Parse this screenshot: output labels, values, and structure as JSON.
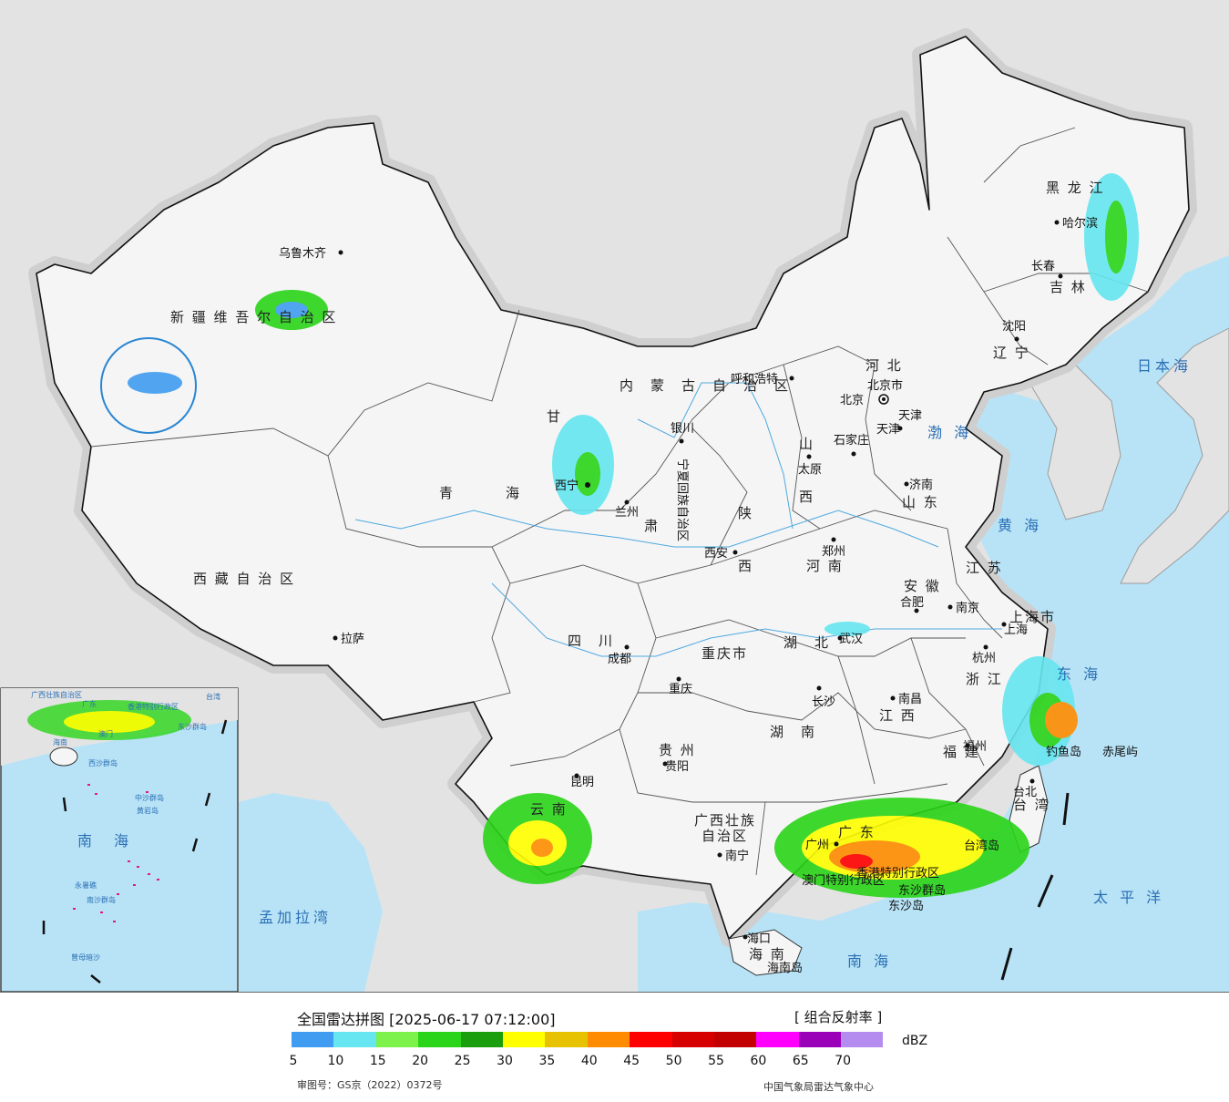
{
  "title": "全国雷达拼图 [2025-06-17 07:12:00]",
  "product": "[ 组合反射率 ]",
  "unit": "dBZ",
  "review_number": "审图号：GS京（2022）0372号",
  "agency": "中国气象局雷达气象中心",
  "scale": {
    "colors": [
      "#3f9cf0",
      "#66e6f0",
      "#7df24a",
      "#2ad418",
      "#1a9e0e",
      "#ffff00",
      "#e6c200",
      "#ff8c00",
      "#ff0000",
      "#d60000",
      "#c20000",
      "#ff00ff",
      "#9900b8",
      "#b48cf0"
    ],
    "ticks": [
      "5",
      "10",
      "15",
      "20",
      "25",
      "30",
      "35",
      "40",
      "45",
      "50",
      "55",
      "60",
      "65",
      "70"
    ]
  },
  "provinces": {
    "xinjiang": "新 疆 维 吾 尔 自 治 区",
    "xizang": "西 藏 自 治 区",
    "qinghai_1": "青",
    "qinghai_2": "海",
    "gansu_1": "甘",
    "gansu_2": "肃",
    "neimenggu": "内　蒙　古　自　治　区",
    "heilongjiang": "黑 龙 江",
    "jilin": "吉 林",
    "liaoning": "辽 宁",
    "hebei": "河 北",
    "shanxi_1": "山",
    "shanxi_2": "西",
    "shandong": "山 东",
    "shaanxi_1": "陕",
    "shaanxi_2": "西",
    "henan": "河 南",
    "sichuan": "四　川",
    "chongqing": "重庆市",
    "hubei": "湖　北",
    "hunan": "湖　南",
    "anhui": "安 徽",
    "jiangsu": "江 苏",
    "zhejiang": "浙 江",
    "jiangxi": "江 西",
    "fujian": "福 建",
    "guizhou": "贵 州",
    "yunnan": "云 南",
    "guangxi_1": "广西壮族",
    "guangxi_2": "自治区",
    "guangdong": "广 东",
    "hainan": "海 南",
    "taiwan": "台 湾",
    "ningxia": "宁夏回族自治区",
    "shanghai": "上海市",
    "tianjin": "天津",
    "beijing_city": "北京市",
    "hongkong": "香港特别行政区",
    "macau": "澳门特别行政区"
  },
  "cities": {
    "urumqi": "乌鲁木齐",
    "lhasa": "拉萨",
    "xining": "西宁",
    "lanzhou": "兰州",
    "yinchuan": "银川",
    "hohhot": "呼和浩特",
    "beijing": "北京",
    "tianjin": "天津",
    "shijiazhuang": "石家庄",
    "taiyuan": "太原",
    "jinan": "济南",
    "xian": "西安",
    "zhengzhou": "郑州",
    "harbin": "哈尔滨",
    "changchun": "长春",
    "shenyang": "沈阳",
    "hefei": "合肥",
    "nanjing": "南京",
    "shanghai": "上海",
    "hangzhou": "杭州",
    "wuhan": "武汉",
    "chengdu": "成都",
    "chongqing": "重庆",
    "changsha": "长沙",
    "nanchang": "南昌",
    "fuzhou": "福州",
    "guiyang": "贵阳",
    "kunming": "昆明",
    "nanning": "南宁",
    "guangzhou": "广州",
    "haikou": "海口",
    "taipei": "台北"
  },
  "seas": {
    "bohai": "渤 海",
    "huanghai": "黄 海",
    "donghai": "东 海",
    "nanhai": "南 海",
    "riben": "日本海",
    "taipingyang": "太 平 洋",
    "mengjiala": "孟加拉湾"
  },
  "islands": {
    "diaoyu": "钓鱼岛",
    "chiwei": "赤尾屿",
    "taiwan_island": "台湾岛",
    "dongsha_qundao": "东沙群岛",
    "dongsha_dao": "东沙岛",
    "hainan_island": "海南岛"
  },
  "inset": {
    "taiwan": "台湾",
    "nanhai": "南　海",
    "dongsha": "东沙群岛",
    "xisha": "西沙群岛",
    "zhongsha": "中沙群岛",
    "huangyan": "黄岩岛",
    "nansha": "南沙群岛",
    "yongshu": "永暑礁",
    "zengmu": "曾母暗沙",
    "hainan": "海南",
    "guangxi": "广西壮族自治区",
    "guangdong": "广东",
    "hongkong": "香港特别行政区",
    "macau": "澳门"
  }
}
